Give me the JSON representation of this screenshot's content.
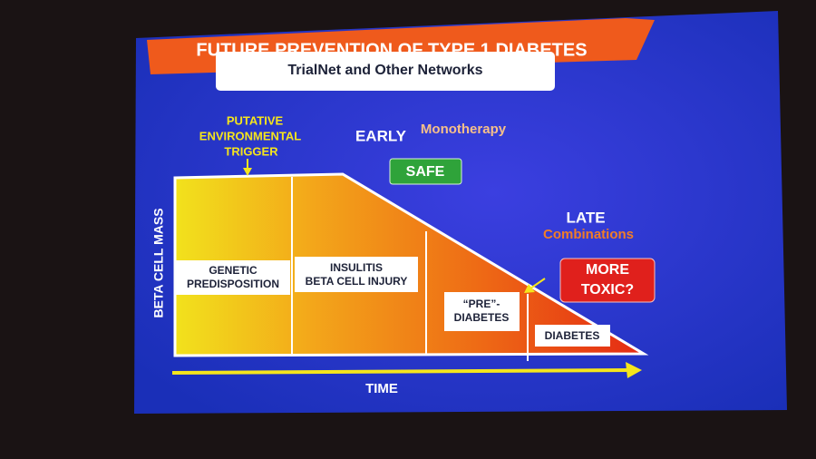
{
  "title": "FUTURE PREVENTION OF TYPE 1 DIABETES",
  "subtitle": "TrialNet and Other Networks",
  "trigger": [
    "PUTATIVE",
    "ENVIRONMENTAL",
    "TRIGGER"
  ],
  "early": {
    "label": "EARLY",
    "therapy": "Monotherapy",
    "badge": "SAFE"
  },
  "late": {
    "label": "LATE",
    "therapy": "Combinations",
    "badge": [
      "MORE",
      "TOXIC?"
    ]
  },
  "stages": [
    [
      "GENETIC",
      "PREDISPOSITION"
    ],
    [
      "INSULITIS",
      "BETA CELL INJURY"
    ],
    [
      "“PRE”-",
      "DIABETES"
    ],
    [
      "DIABETES"
    ]
  ],
  "y_axis": "BETA CELL MASS",
  "x_axis": "TIME"
}
